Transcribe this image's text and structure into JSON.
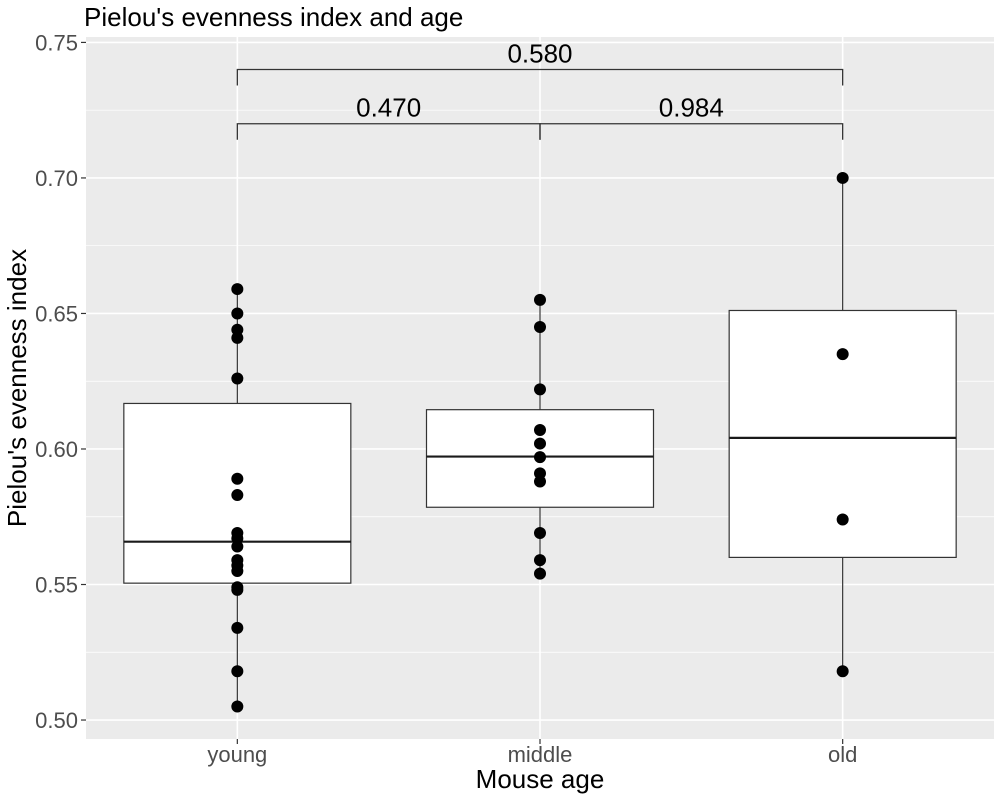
{
  "chart_data": {
    "type": "box",
    "title": "Pielou's evenness index and age",
    "xlabel": "Mouse age",
    "ylabel": "Pielou's evenness index",
    "categories": [
      "young",
      "middle",
      "old"
    ],
    "ylim": [
      0.493,
      0.752
    ],
    "yticks": [
      "0.50",
      "0.55",
      "0.60",
      "0.65",
      "0.70",
      "0.75"
    ],
    "grid": true,
    "boxes": [
      {
        "category": "young",
        "q1": 0.5505,
        "median": 0.5658,
        "q3": 0.6168,
        "whisker_low": 0.505,
        "whisker_high": 0.659
      },
      {
        "category": "middle",
        "q1": 0.5785,
        "median": 0.5972,
        "q3": 0.6145,
        "whisker_low": 0.554,
        "whisker_high": 0.655
      },
      {
        "category": "old",
        "q1": 0.56,
        "median": 0.6041,
        "q3": 0.6511,
        "whisker_low": 0.518,
        "whisker_high": 0.7
      }
    ],
    "points": [
      {
        "category": "young",
        "values": [
          0.659,
          0.65,
          0.644,
          0.641,
          0.626,
          0.589,
          0.583,
          0.569,
          0.567,
          0.564,
          0.559,
          0.557,
          0.555,
          0.549,
          0.548,
          0.534,
          0.518,
          0.505
        ]
      },
      {
        "category": "middle",
        "values": [
          0.655,
          0.645,
          0.622,
          0.607,
          0.602,
          0.597,
          0.591,
          0.588,
          0.569,
          0.559,
          0.554
        ]
      },
      {
        "category": "old",
        "values": [
          0.7,
          0.635,
          0.574,
          0.518
        ]
      }
    ],
    "brackets": [
      {
        "from": "young",
        "to": "old",
        "label": "0.580",
        "y": 0.74
      },
      {
        "from": "young",
        "to": "middle",
        "label": "0.470",
        "y": 0.72
      },
      {
        "from": "middle",
        "to": "old",
        "label": "0.984",
        "y": 0.72
      }
    ]
  }
}
